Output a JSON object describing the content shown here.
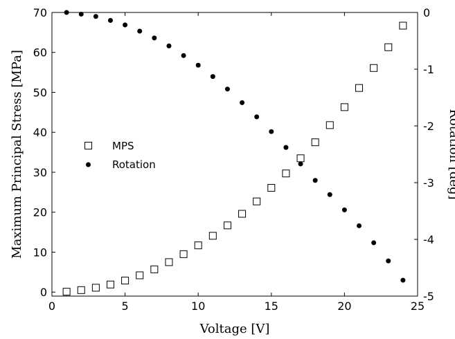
{
  "chart_data": {
    "type": "scatter",
    "xlabel": "Voltage [V]",
    "ylabel": "Maximum Principal Stress [MPa]",
    "y2label": "Rotation [deg]",
    "xlim": [
      0,
      25
    ],
    "ylim": [
      -1,
      70
    ],
    "y2lim": [
      -5,
      0
    ],
    "xticks": [
      0,
      5,
      10,
      15,
      20,
      25
    ],
    "yticks": [
      0,
      10,
      20,
      30,
      40,
      50,
      60,
      70
    ],
    "y2ticks": [
      0,
      -1,
      -2,
      -3,
      -4,
      -5
    ],
    "grid": false,
    "legend_position": "center-left",
    "x": [
      1,
      2,
      3,
      4,
      5,
      6,
      7,
      8,
      9,
      10,
      11,
      12,
      13,
      14,
      15,
      16,
      17,
      18,
      19,
      20,
      21,
      22,
      23,
      24
    ],
    "series": [
      {
        "name": "MPS",
        "axis": "left",
        "marker": "open-square",
        "values": [
          0.1,
          0.5,
          1.1,
          1.9,
          2.9,
          4.2,
          5.7,
          7.5,
          9.5,
          11.7,
          14.1,
          16.7,
          19.6,
          22.7,
          26.1,
          29.7,
          33.5,
          37.5,
          41.8,
          46.3,
          51.1,
          56.1,
          61.3,
          66.7
        ]
      },
      {
        "name": "Rotation",
        "axis": "right",
        "marker": "filled-circle",
        "values": [
          0.0,
          -0.03,
          -0.07,
          -0.14,
          -0.22,
          -0.33,
          -0.45,
          -0.59,
          -0.76,
          -0.93,
          -1.13,
          -1.35,
          -1.59,
          -1.84,
          -2.1,
          -2.38,
          -2.67,
          -2.96,
          -3.21,
          -3.48,
          -3.76,
          -4.06,
          -4.38,
          -4.72
        ]
      }
    ]
  }
}
